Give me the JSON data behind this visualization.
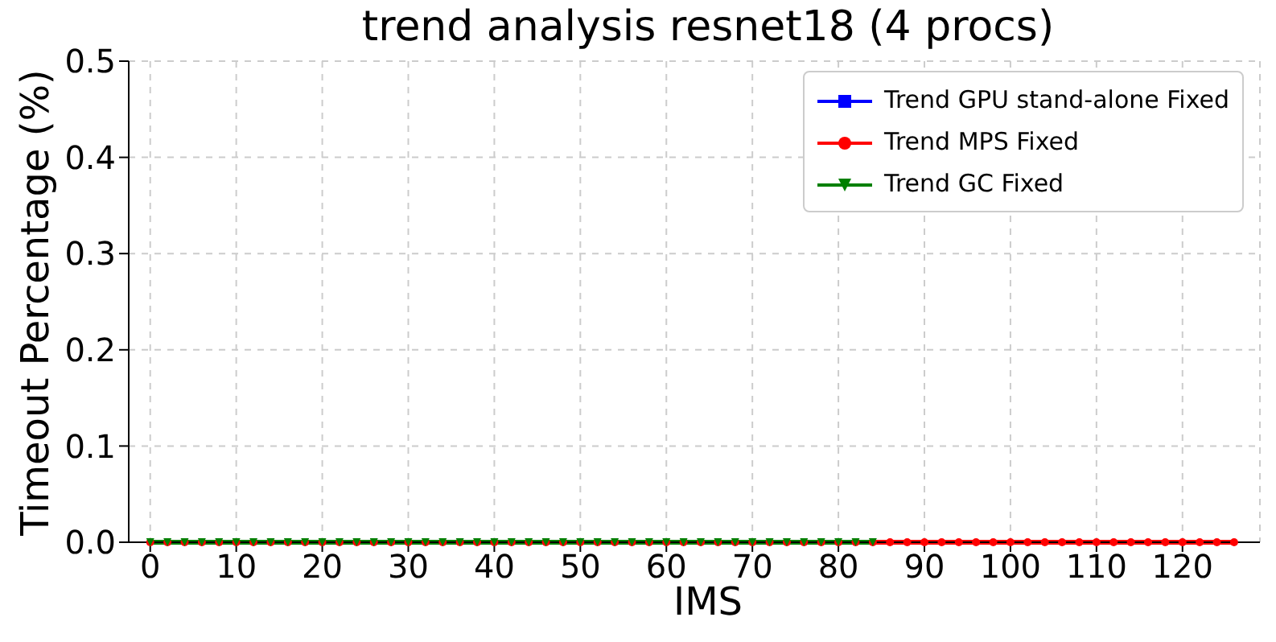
{
  "chart_data": {
    "type": "line",
    "title": "trend analysis resnet18 (4 procs)",
    "xlabel": "IMS",
    "ylabel": "Timeout Percentage (%)",
    "xlim": [
      -2.5,
      129
    ],
    "xticks": [
      0,
      10,
      20,
      30,
      40,
      50,
      60,
      70,
      80,
      90,
      100,
      110,
      120
    ],
    "ylim": [
      0,
      0.5
    ],
    "yticks": [
      {
        "value": 0,
        "label": "0.0"
      },
      {
        "value": 0.1,
        "label": "0.1"
      },
      {
        "value": 0.2,
        "label": "0.2"
      },
      {
        "value": 0.3,
        "label": "0.3"
      },
      {
        "value": 0.4,
        "label": "0.4"
      },
      {
        "value": 0.5,
        "label": "0.5"
      }
    ],
    "grid": true,
    "legend": "top right",
    "line_style": "solid",
    "series": [
      {
        "name": "Trend GPU stand-alone Fixed",
        "color": "#0000ff",
        "marker": "square"
      },
      {
        "name": "Trend MPS Fixed",
        "color": "#ff0000",
        "marker": "circle",
        "x": [
          0,
          2,
          4,
          6,
          8,
          10,
          12,
          14,
          16,
          18,
          20,
          22,
          24,
          26,
          28,
          30,
          32,
          34,
          36,
          38,
          40,
          42,
          44,
          46,
          48,
          50,
          52,
          54,
          56,
          58,
          60,
          62,
          64,
          66,
          68,
          70,
          72,
          74,
          76,
          78,
          80,
          82,
          84,
          86,
          88,
          90,
          92,
          94,
          96,
          98,
          100,
          102,
          104,
          106,
          108,
          110,
          112,
          114,
          116,
          118,
          120,
          122,
          124,
          126
        ],
        "values": [
          0,
          0,
          0,
          0,
          0,
          0,
          0,
          0,
          0,
          0,
          0,
          0,
          0,
          0,
          0,
          0,
          0,
          0,
          0,
          0,
          0,
          0,
          0,
          0,
          0,
          0,
          0,
          0,
          0,
          0,
          0,
          0,
          0,
          0,
          0,
          0,
          0,
          0,
          0,
          0,
          0,
          0,
          0,
          0,
          0,
          0,
          0,
          0,
          0,
          0,
          0,
          0,
          0,
          0,
          0,
          0,
          0,
          0,
          0,
          0,
          0,
          0,
          0,
          0
        ]
      },
      {
        "name": "Trend GC Fixed",
        "color": "#008000",
        "marker": "triangle",
        "x": [
          0,
          2,
          4,
          6,
          8,
          10,
          12,
          14,
          16,
          18,
          20,
          22,
          24,
          26,
          28,
          30,
          32,
          34,
          36,
          38,
          40,
          42,
          44,
          46,
          48,
          50,
          52,
          54,
          56,
          58,
          60,
          62,
          64,
          66,
          68,
          70,
          72,
          74,
          76,
          78,
          80,
          82,
          84
        ],
        "values": [
          0,
          0,
          0,
          0,
          0,
          0,
          0,
          0,
          0,
          0,
          0,
          0,
          0,
          0,
          0,
          0,
          0,
          0,
          0,
          0,
          0,
          0,
          0,
          0,
          0,
          0,
          0,
          0,
          0,
          0,
          0,
          0,
          0,
          0,
          0,
          0,
          0,
          0,
          0,
          0,
          0,
          0,
          0
        ]
      }
    ]
  }
}
